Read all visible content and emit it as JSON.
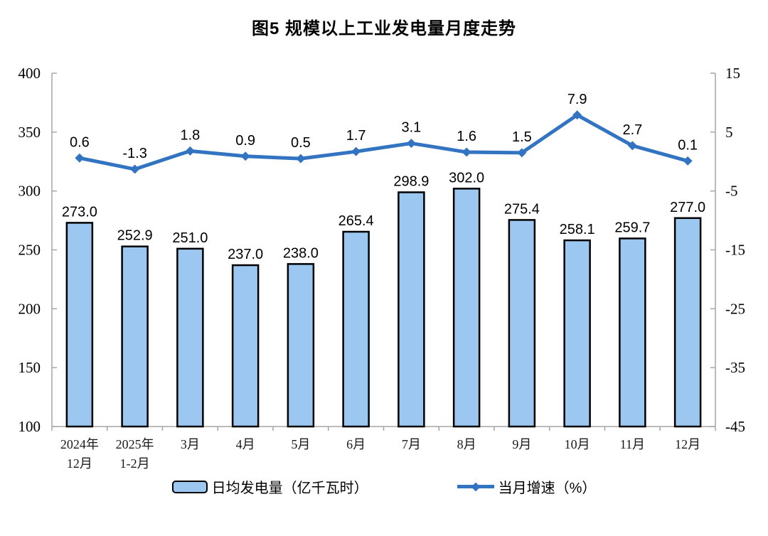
{
  "page": {
    "title": "图5  规模以上工业发电量月度走势"
  },
  "chart_data": {
    "type": "combo",
    "title": "图5  规模以上工业发电量月度走势",
    "categories": [
      [
        "2024年",
        "12月"
      ],
      [
        "2025年",
        "1-2月"
      ],
      "3月",
      "4月",
      "5月",
      "6月",
      "7月",
      "8月",
      "9月",
      "10月",
      "11月",
      "12月"
    ],
    "series": [
      {
        "name": "日均发电量（亿千瓦时）",
        "type": "bar",
        "axis": "left",
        "values": [
          273.0,
          252.9,
          251.0,
          237.0,
          238.0,
          265.4,
          298.9,
          302.0,
          275.4,
          258.1,
          259.7,
          277.0
        ]
      },
      {
        "name": "当月增速（%）",
        "type": "line",
        "axis": "right",
        "values": [
          0.6,
          -1.3,
          1.8,
          0.9,
          0.5,
          1.7,
          3.1,
          1.6,
          1.5,
          7.9,
          2.7,
          0.1
        ]
      }
    ],
    "left_axis": {
      "min": 100,
      "max": 400,
      "ticks": [
        100,
        150,
        200,
        250,
        300,
        350,
        400
      ]
    },
    "right_axis": {
      "min": -45,
      "max": 15,
      "ticks": [
        -45,
        -35,
        -25,
        -15,
        -5,
        5,
        15
      ]
    },
    "grid": "off",
    "legend_position": "bottom",
    "legend": [
      {
        "label": "日均发电量（亿千瓦时）",
        "swatch": "bar"
      },
      {
        "label": "当月增速（%）",
        "swatch": "line"
      }
    ],
    "colors": {
      "bar_fill": "#9CC7F0",
      "bar_border": "#000000",
      "line": "#3374C2",
      "axis": "#A6A6A6",
      "text": "#000000"
    }
  }
}
